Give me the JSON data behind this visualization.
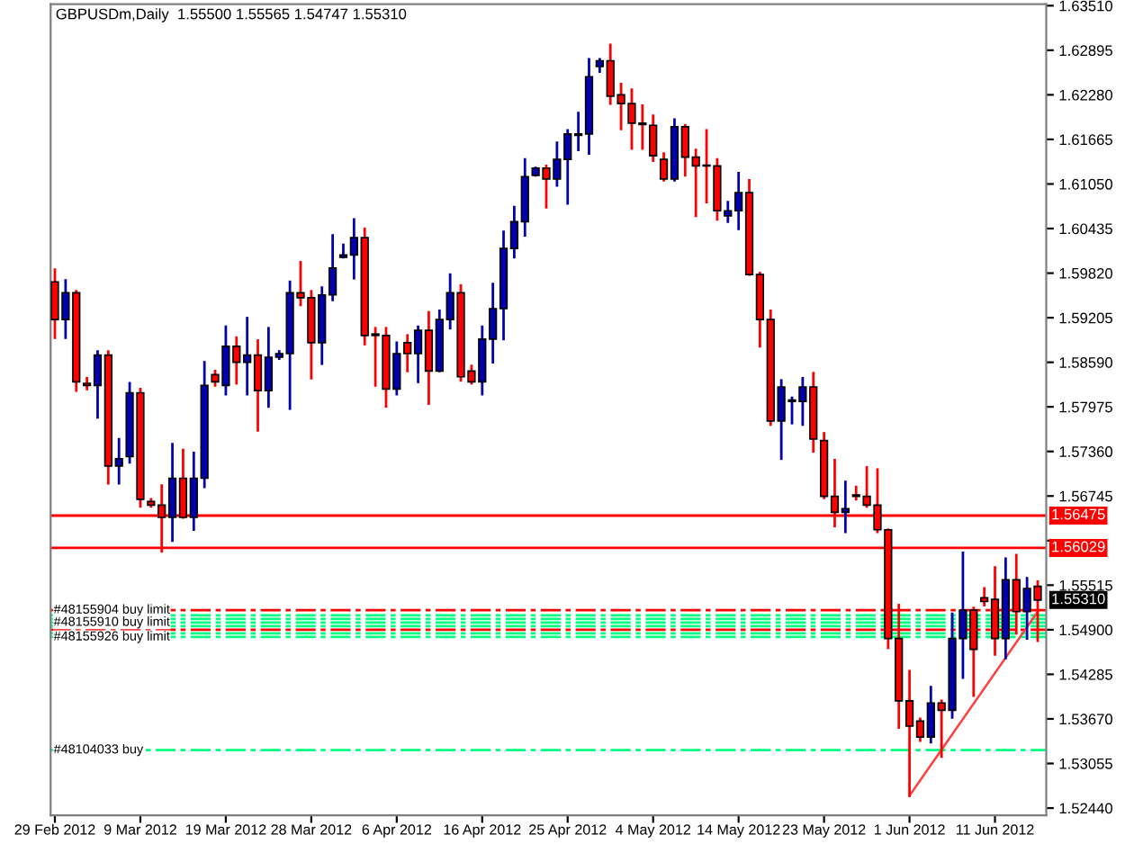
{
  "chart_data": {
    "type": "candlestick",
    "title": "GBPUSDm,Daily  1.55500 1.55565 1.54747 1.55310",
    "categories": [
      "29 Feb 2012",
      null,
      null,
      null,
      null,
      null,
      null,
      null,
      "9 Mar 2012",
      null,
      null,
      null,
      null,
      null,
      null,
      null,
      "19 Mar 2012",
      null,
      null,
      null,
      null,
      null,
      null,
      null,
      "28 Mar 2012",
      null,
      null,
      null,
      null,
      null,
      null,
      null,
      "6 Apr 2012",
      null,
      null,
      null,
      null,
      null,
      null,
      null,
      "16 Apr 2012",
      null,
      null,
      null,
      null,
      null,
      null,
      null,
      "25 Apr 2012",
      null,
      null,
      null,
      null,
      null,
      null,
      null,
      "4 May 2012",
      null,
      null,
      null,
      null,
      null,
      null,
      null,
      "14 May 2012",
      null,
      null,
      null,
      null,
      null,
      null,
      null,
      "23 May 2012",
      null,
      null,
      null,
      null,
      null,
      null,
      null,
      "1 Jun 2012",
      null,
      null,
      null,
      null,
      null,
      null,
      null,
      "11 Jun 2012",
      null,
      null,
      null,
      null
    ],
    "ohlc": [
      [
        1.597,
        1.5987,
        1.5893,
        1.5918
      ],
      [
        1.5918,
        1.5972,
        1.5893,
        1.5955
      ],
      [
        1.5955,
        1.5957,
        1.582,
        1.5832
      ],
      [
        1.583,
        1.5837,
        1.5822,
        1.5827
      ],
      [
        1.5827,
        1.5874,
        1.5783,
        1.5869
      ],
      [
        1.5869,
        1.5874,
        1.5692,
        1.5716
      ],
      [
        1.5716,
        1.5753,
        1.5692,
        1.5726
      ],
      [
        1.5729,
        1.583,
        1.5721,
        1.5817
      ],
      [
        1.5817,
        1.5822,
        1.566,
        1.567
      ],
      [
        1.5667,
        1.567,
        1.566,
        1.5662
      ],
      [
        1.5662,
        1.5689,
        1.5598,
        1.5645
      ],
      [
        1.5645,
        1.5746,
        1.5613,
        1.5699
      ],
      [
        1.5699,
        1.5738,
        1.5645,
        1.5645
      ],
      [
        1.5645,
        1.5734,
        1.5628,
        1.5699
      ],
      [
        1.5699,
        1.5859,
        1.5687,
        1.5827
      ],
      [
        1.5842,
        1.5847,
        1.5827,
        1.5832
      ],
      [
        1.5827,
        1.5908,
        1.5815,
        1.5881
      ],
      [
        1.5881,
        1.5893,
        1.583,
        1.5859
      ],
      [
        1.5859,
        1.592,
        1.5815,
        1.5869
      ],
      [
        1.5869,
        1.5889,
        1.5765,
        1.582
      ],
      [
        1.582,
        1.5906,
        1.5798,
        1.5866
      ],
      [
        1.5866,
        1.5874,
        1.5864,
        1.5871
      ],
      [
        1.5871,
        1.597,
        1.5795,
        1.5955
      ],
      [
        1.5955,
        1.5997,
        1.5938,
        1.5948
      ],
      [
        1.5948,
        1.5957,
        1.5837,
        1.5886
      ],
      [
        1.5886,
        1.5962,
        1.5857,
        1.5952
      ],
      [
        1.5952,
        1.6034,
        1.5945,
        1.5989
      ],
      [
        1.6004,
        1.6021,
        1.6004,
        1.6007
      ],
      [
        1.6007,
        1.6056,
        1.5975,
        1.6031
      ],
      [
        1.6031,
        1.6043,
        1.5884,
        1.5896
      ],
      [
        1.5898,
        1.5906,
        1.5827,
        1.5896
      ],
      [
        1.5896,
        1.5906,
        1.5798,
        1.5822
      ],
      [
        1.5822,
        1.5886,
        1.5815,
        1.5871
      ],
      [
        1.5886,
        1.5896,
        1.5847,
        1.5871
      ],
      [
        1.5871,
        1.5908,
        1.5832,
        1.5903
      ],
      [
        1.5903,
        1.5928,
        1.5802,
        1.5847
      ],
      [
        1.5847,
        1.593,
        1.5847,
        1.5918
      ],
      [
        1.5918,
        1.598,
        1.5906,
        1.5955
      ],
      [
        1.5955,
        1.5965,
        1.5834,
        1.5839
      ],
      [
        1.5847,
        1.5854,
        1.583,
        1.5832
      ],
      [
        1.5832,
        1.5908,
        1.5815,
        1.5891
      ],
      [
        1.5891,
        1.5967,
        1.5859,
        1.5933
      ],
      [
        1.5933,
        1.6039,
        1.5891,
        1.6016
      ],
      [
        1.6016,
        1.6073,
        1.6004,
        1.6053
      ],
      [
        1.6053,
        1.6139,
        1.6034,
        1.6115
      ],
      [
        1.6117,
        1.6127,
        1.6117,
        1.6127
      ],
      [
        1.6127,
        1.613,
        1.6073,
        1.6112
      ],
      [
        1.6112,
        1.6162,
        1.6103,
        1.6139
      ],
      [
        1.6139,
        1.6179,
        1.6078,
        1.6174
      ],
      [
        1.6172,
        1.6203,
        1.6152,
        1.6174
      ],
      [
        1.6174,
        1.6277,
        1.6147,
        1.6253
      ],
      [
        1.6267,
        1.6277,
        1.626,
        1.6275
      ],
      [
        1.6275,
        1.6297,
        1.6216,
        1.6226
      ],
      [
        1.6228,
        1.6243,
        1.6181,
        1.6216
      ],
      [
        1.6216,
        1.6235,
        1.6154,
        1.6189
      ],
      [
        1.6189,
        1.6213,
        1.6154,
        1.6187
      ],
      [
        1.6186,
        1.6199,
        1.6137,
        1.6144
      ],
      [
        1.6139,
        1.6147,
        1.611,
        1.6112
      ],
      [
        1.6112,
        1.6194,
        1.611,
        1.6184
      ],
      [
        1.6184,
        1.6186,
        1.6117,
        1.6142
      ],
      [
        1.6142,
        1.6152,
        1.6061,
        1.613
      ],
      [
        1.6131,
        1.6179,
        1.608,
        1.613
      ],
      [
        1.613,
        1.6139,
        1.6056,
        1.6068
      ],
      [
        1.6061,
        1.608,
        1.6053,
        1.6068
      ],
      [
        1.6068,
        1.612,
        1.6043,
        1.6093
      ],
      [
        1.6093,
        1.611,
        1.598,
        1.598
      ],
      [
        1.598,
        1.5982,
        1.5881,
        1.5918
      ],
      [
        1.5918,
        1.593,
        1.5773,
        1.5778
      ],
      [
        1.5778,
        1.5834,
        1.5726,
        1.5825
      ],
      [
        1.5805,
        1.581,
        1.5775,
        1.5807
      ],
      [
        1.5805,
        1.5837,
        1.5773,
        1.5825
      ],
      [
        1.5825,
        1.5844,
        1.5736,
        1.5753
      ],
      [
        1.5751,
        1.5761,
        1.5672,
        1.5674
      ],
      [
        1.5674,
        1.5724,
        1.5633,
        1.5652
      ],
      [
        1.5652,
        1.5694,
        1.5625,
        1.5657
      ],
      [
        1.5676,
        1.5687,
        1.567,
        1.5674
      ],
      [
        1.5674,
        1.5714,
        1.566,
        1.5662
      ],
      [
        1.5662,
        1.5711,
        1.5625,
        1.5628
      ],
      [
        1.5628,
        1.5628,
        1.5465,
        1.5478
      ],
      [
        1.5478,
        1.5524,
        1.5355,
        1.5392
      ],
      [
        1.5392,
        1.5433,
        1.5261,
        1.5357
      ],
      [
        1.5364,
        1.5367,
        1.5337,
        1.5342
      ],
      [
        1.5342,
        1.5411,
        1.5335,
        1.5389
      ],
      [
        1.5389,
        1.5392,
        1.5315,
        1.5379
      ],
      [
        1.5379,
        1.5512,
        1.5369,
        1.5478
      ],
      [
        1.5478,
        1.5596,
        1.5424,
        1.5517
      ],
      [
        1.5517,
        1.552,
        1.5399,
        1.5463
      ],
      [
        1.5534,
        1.5547,
        1.5524,
        1.5529
      ],
      [
        1.5532,
        1.5576,
        1.5456,
        1.5478
      ],
      [
        1.5478,
        1.5588,
        1.5451,
        1.5559
      ],
      [
        1.5559,
        1.5593,
        1.5485,
        1.5515
      ],
      [
        1.5515,
        1.5561,
        1.5478,
        1.5547
      ],
      [
        1.555,
        1.55565,
        1.54747,
        1.5531
      ]
    ],
    "colors": [
      "#ff0000",
      "#0000b0",
      "#ff0000",
      "#ff0000",
      "#0000b0",
      "#ff0000",
      "#0000b0",
      "#0000b0",
      "#ff0000",
      "#ff0000",
      "#ff0000",
      "#0000b0",
      "#ff0000",
      "#0000b0",
      "#0000b0",
      "#ff0000",
      "#0000b0",
      "#ff0000",
      "#0000b0",
      "#ff0000",
      "#0000b0",
      "#0000b0",
      "#0000b0",
      "#ff0000",
      "#ff0000",
      "#0000b0",
      "#0000b0",
      "#0000b0",
      "#0000b0",
      "#ff0000",
      "#ff0000",
      "#ff0000",
      "#0000b0",
      "#ff0000",
      "#0000b0",
      "#ff0000",
      "#0000b0",
      "#0000b0",
      "#ff0000",
      "#ff0000",
      "#0000b0",
      "#0000b0",
      "#0000b0",
      "#0000b0",
      "#0000b0",
      "#0000b0",
      "#ff0000",
      "#0000b0",
      "#0000b0",
      "#0000b0",
      "#0000b0",
      "#0000b0",
      "#ff0000",
      "#ff0000",
      "#ff0000",
      "#ff0000",
      "#ff0000",
      "#ff0000",
      "#0000b0",
      "#ff0000",
      "#ff0000",
      "#ff0000",
      "#ff0000",
      "#0000b0",
      "#0000b0",
      "#ff0000",
      "#ff0000",
      "#ff0000",
      "#0000b0",
      "#0000b0",
      "#0000b0",
      "#ff0000",
      "#ff0000",
      "#ff0000",
      "#0000b0",
      "#ff0000",
      "#ff0000",
      "#ff0000",
      "#ff0000",
      "#ff0000",
      "#ff0000",
      "#ff0000",
      "#0000b0",
      "#ff0000",
      "#0000b0",
      "#0000b0",
      "#ff0000",
      "#ff0000",
      "#ff0000",
      "#0000b0",
      "#ff0000",
      "#0000b0",
      "#ff0000"
    ],
    "series": [
      {
        "type": "line",
        "color": "#ff4040",
        "values": [
          null,
          null,
          null,
          null,
          null,
          null,
          null,
          null,
          null,
          null,
          null,
          null,
          null,
          null,
          null,
          null,
          null,
          null,
          null,
          null,
          null,
          null,
          null,
          null,
          null,
          null,
          null,
          null,
          null,
          null,
          null,
          null,
          null,
          null,
          null,
          null,
          null,
          null,
          null,
          null,
          null,
          null,
          null,
          null,
          null,
          null,
          null,
          null,
          null,
          null,
          null,
          null,
          null,
          null,
          null,
          null,
          null,
          null,
          null,
          null,
          null,
          null,
          null,
          null,
          null,
          null,
          null,
          null,
          null,
          null,
          null,
          null,
          null,
          null,
          null,
          null,
          null,
          null,
          null,
          null,
          1.5261,
          null,
          null,
          null,
          null,
          null,
          null,
          null,
          null,
          null,
          null,
          null,
          1.5515
        ]
      }
    ],
    "ylim": [
      1.5234,
      1.6353
    ],
    "yticks": [
      {
        "value": 1.6351,
        "label": "1.63510"
      },
      {
        "value": 1.62895,
        "label": "1.62895"
      },
      {
        "value": 1.6228,
        "label": "1.62280"
      },
      {
        "value": 1.61665,
        "label": "1.61665"
      },
      {
        "value": 1.6105,
        "label": "1.61050"
      },
      {
        "value": 1.60435,
        "label": "1.60435"
      },
      {
        "value": 1.5982,
        "label": "1.59820"
      },
      {
        "value": 1.59205,
        "label": "1.59205"
      },
      {
        "value": 1.5859,
        "label": "1.58590"
      },
      {
        "value": 1.57975,
        "label": "1.57975"
      },
      {
        "value": 1.5736,
        "label": "1.57360"
      },
      {
        "value": 1.56745,
        "label": "1.56745"
      },
      {
        "value": 1.5613,
        "label": null
      },
      {
        "value": 1.55515,
        "label": "1.55515"
      },
      {
        "value": 1.549,
        "label": "1.54900"
      },
      {
        "value": 1.54285,
        "label": "1.54285"
      },
      {
        "value": 1.5367,
        "label": "1.53670"
      },
      {
        "value": 1.53055,
        "label": "1.53055"
      },
      {
        "value": 1.5244,
        "label": "1.52440"
      }
    ],
    "ref_lines": [
      {
        "axis": "y",
        "value": 1.56475,
        "label": "1.56475",
        "color": "#ff0000",
        "line_style": "solid"
      },
      {
        "axis": "y",
        "value": 1.56029,
        "label": "1.56029",
        "color": "#ff0000",
        "line_style": "solid"
      },
      {
        "axis": "y",
        "value": 1.5517,
        "label": "#48155904 buy limit",
        "color": "#ff0000",
        "line_style": "dashed"
      },
      {
        "axis": "y",
        "value": 1.551,
        "color": "#00ff80",
        "line_style": "dashed"
      },
      {
        "axis": "y",
        "value": 1.5505,
        "color": "#00ff80",
        "line_style": "dashed"
      },
      {
        "axis": "y",
        "value": 1.55,
        "label": "#48155910 buy limit",
        "color": "#00ff80",
        "line_style": "dashed"
      },
      {
        "axis": "y",
        "value": 1.5495,
        "color": "#00ff80",
        "line_style": "dashed"
      },
      {
        "axis": "y",
        "value": 1.549,
        "color": "#ff0000",
        "line_style": "dashed"
      },
      {
        "axis": "y",
        "value": 1.5485,
        "color": "#00ff80",
        "line_style": "dashed"
      },
      {
        "axis": "y",
        "value": 1.548,
        "label": "#48155926 buy limit",
        "color": "#00ff80",
        "line_style": "dashed"
      },
      {
        "axis": "y",
        "value": 1.5324,
        "label": "#48104033 buy",
        "color": "#00ff80",
        "line_style": "dashed"
      }
    ],
    "annotations": [
      "1.55310"
    ],
    "grid": false,
    "legend": false
  }
}
